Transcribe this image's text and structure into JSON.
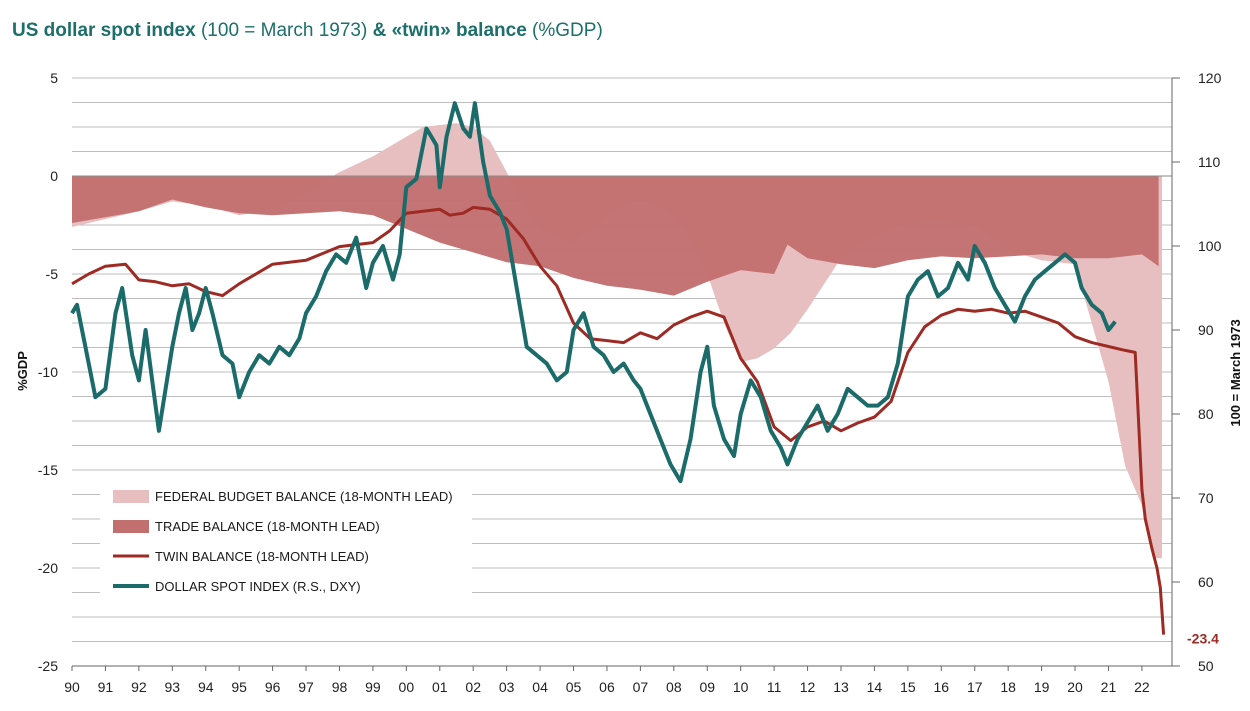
{
  "title": {
    "part1": "US dollar spot index",
    "part2": " (100 = March 1973) ",
    "part3": "& «twin» balance",
    "part4": " (%GDP)"
  },
  "colors": {
    "budget": "#e8bfc0",
    "trade": "#c26f70",
    "twin": "#9e2a24",
    "dollar": "#1a6b69",
    "grid": "#bdbdbd",
    "title": "#1d6f6b"
  },
  "chart_data": {
    "type": "area",
    "title": "US dollar spot index (100 = March 1973) & «twin» balance (%GDP)",
    "ylabel_left": "%GDP",
    "ylabel_right": "100 = March 1973",
    "ylim_left": [
      -25,
      5
    ],
    "ylim_right": [
      50,
      120
    ],
    "xlim": [
      1990,
      2022.9
    ],
    "left_ticks": [
      5,
      0,
      -5,
      -10,
      -15,
      -20,
      -25
    ],
    "right_ticks": [
      120,
      110,
      100,
      90,
      80,
      70,
      60,
      50
    ],
    "x_tick_values": [
      1990,
      1991,
      1992,
      1993,
      1994,
      1995,
      1996,
      1997,
      1998,
      1999,
      2000,
      2001,
      2002,
      2003,
      2004,
      2005,
      2006,
      2007,
      2008,
      2009,
      2010,
      2011,
      2012,
      2013,
      2014,
      2015,
      2016,
      2017,
      2018,
      2019,
      2020,
      2021,
      2022
    ],
    "x_tick_labels": [
      "90",
      "91",
      "92",
      "93",
      "94",
      "95",
      "96",
      "97",
      "98",
      "99",
      "00",
      "01",
      "02",
      "03",
      "04",
      "05",
      "06",
      "07",
      "08",
      "09",
      "10",
      "11",
      "12",
      "13",
      "14",
      "15",
      "16",
      "17",
      "18",
      "19",
      "20",
      "21",
      "22"
    ],
    "legend": [
      {
        "key": "budget",
        "label": "FEDERAL BUDGET BALANCE (18-MONTH LEAD)",
        "style": "box"
      },
      {
        "key": "trade",
        "label": "TRADE BALANCE (18-MONTH LEAD)",
        "style": "box"
      },
      {
        "key": "twin",
        "label": "TWIN BALANCE (18-MONTH LEAD)",
        "style": "line"
      },
      {
        "key": "dollar",
        "label": "DOLLAR SPOT INDEX (R.S., DXY)",
        "style": "line"
      }
    ],
    "annotation": {
      "x": 2022.6,
      "y": -23.4,
      "label": "-23.4"
    },
    "series": [
      {
        "name": "FEDERAL BUDGET BALANCE (18-MONTH LEAD)",
        "key": "budget",
        "axis": "left",
        "x": [
          1990,
          1991,
          1992,
          1993,
          1994,
          1995,
          1996,
          1997,
          1998,
          1999,
          2000,
          2000.5,
          2001,
          2001.5,
          2002,
          2002.5,
          2003,
          2003.5,
          2004,
          2005,
          2006,
          2007,
          2008,
          2008.5,
          2009,
          2009.5,
          2010,
          2010.5,
          2011,
          2011.5,
          2012,
          2013,
          2014,
          2015,
          2016,
          2017,
          2018,
          2019,
          2020,
          2021,
          2021.5,
          2022,
          2022.2,
          2022.4,
          2022.6
        ],
        "y": [
          -2.6,
          -2.2,
          -1.8,
          -1.3,
          -1.5,
          -2.0,
          -1.7,
          -0.8,
          0.2,
          1.0,
          2.0,
          2.5,
          2.6,
          2.7,
          2.5,
          1.8,
          0.2,
          -1.5,
          -2.7,
          -3.4,
          -2.0,
          -1.1,
          -2.0,
          -3.2,
          -5.0,
          -7.5,
          -9.5,
          -9.3,
          -8.8,
          -8.0,
          -6.8,
          -4.2,
          -3.0,
          -2.4,
          -2.3,
          -2.5,
          -3.8,
          -4.3,
          -4.5,
          -10.5,
          -14.8,
          -16.8,
          -18.5,
          -19.5,
          -19.5
        ]
      },
      {
        "name": "TRADE BALANCE (18-MONTH LEAD)",
        "key": "trade",
        "axis": "left",
        "x": [
          1990,
          1991,
          1992,
          1993,
          1994,
          1995,
          1996,
          1997,
          1998,
          1999,
          2000,
          2001,
          2002,
          2003,
          2004,
          2005,
          2006,
          2007,
          2008,
          2009,
          2010,
          2011,
          2011.4,
          2012,
          2013,
          2014,
          2015,
          2016,
          2017,
          2018,
          2019,
          2020,
          2021,
          2022,
          2022.5
        ],
        "y": [
          -2.4,
          -2.1,
          -1.8,
          -1.2,
          -1.6,
          -1.9,
          -2.0,
          -1.9,
          -1.8,
          -2.0,
          -2.7,
          -3.4,
          -3.9,
          -4.4,
          -4.6,
          -5.2,
          -5.6,
          -5.8,
          -6.1,
          -5.4,
          -4.8,
          -5.0,
          -3.5,
          -4.2,
          -4.5,
          -4.7,
          -4.3,
          -4.1,
          -4.2,
          -4.1,
          -4.0,
          -4.2,
          -4.2,
          -4.0,
          -4.6
        ]
      },
      {
        "name": "TWIN BALANCE (18-MONTH LEAD)",
        "key": "twin",
        "axis": "left",
        "x": [
          1990,
          1990.5,
          1991,
          1991.6,
          1992,
          1992.5,
          1993,
          1993.5,
          1994,
          1994.5,
          1995,
          1996,
          1997,
          1998,
          1998.5,
          1999,
          1999.5,
          2000,
          2000.5,
          2001,
          2001.3,
          2001.7,
          2002,
          2002.5,
          2003,
          2003.5,
          2004,
          2004.5,
          2005,
          2005.5,
          2006,
          2006.5,
          2007,
          2007.5,
          2008,
          2008.5,
          2009,
          2009.5,
          2010,
          2010.5,
          2011,
          2011.5,
          2012,
          2012.5,
          2013,
          2013.5,
          2014,
          2014.5,
          2015,
          2015.5,
          2016,
          2016.5,
          2017,
          2017.5,
          2018,
          2018.5,
          2019,
          2019.5,
          2020,
          2020.5,
          2021,
          2021.5,
          2021.8,
          2022,
          2022.1,
          2022.3,
          2022.45,
          2022.55,
          2022.65
        ],
        "y": [
          -5.5,
          -5.0,
          -4.6,
          -4.5,
          -5.3,
          -5.4,
          -5.6,
          -5.5,
          -5.9,
          -6.1,
          -5.5,
          -4.5,
          -4.3,
          -3.6,
          -3.5,
          -3.4,
          -2.8,
          -1.9,
          -1.8,
          -1.7,
          -2.0,
          -1.9,
          -1.6,
          -1.7,
          -2.2,
          -3.2,
          -4.6,
          -5.6,
          -7.5,
          -8.3,
          -8.4,
          -8.5,
          -8.0,
          -8.3,
          -7.6,
          -7.2,
          -6.9,
          -7.2,
          -9.3,
          -10.5,
          -12.8,
          -13.5,
          -12.8,
          -12.5,
          -13.0,
          -12.6,
          -12.3,
          -11.5,
          -9.0,
          -7.7,
          -7.1,
          -6.8,
          -6.9,
          -6.8,
          -7.0,
          -6.9,
          -7.2,
          -7.5,
          -8.2,
          -8.5,
          -8.7,
          -8.9,
          -9.0,
          -16.0,
          -17.5,
          -19.0,
          -20.0,
          -21.0,
          -23.4
        ]
      },
      {
        "name": "DOLLAR SPOT INDEX (R.S., DXY)",
        "key": "dollar",
        "axis": "right",
        "x": [
          1990,
          1990.15,
          1990.4,
          1990.7,
          1991,
          1991.3,
          1991.5,
          1991.8,
          1992,
          1992.2,
          1992.4,
          1992.6,
          1992.8,
          1993,
          1993.2,
          1993.4,
          1993.6,
          1993.8,
          1994,
          1994.2,
          1994.5,
          1994.8,
          1995,
          1995.3,
          1995.6,
          1995.9,
          1996.2,
          1996.5,
          1996.8,
          1997,
          1997.3,
          1997.6,
          1997.9,
          1998.2,
          1998.5,
          1998.8,
          1999,
          1999.3,
          1999.6,
          1999.8,
          2000,
          2000.3,
          2000.6,
          2000.9,
          2001,
          2001.2,
          2001.45,
          2001.7,
          2001.9,
          2002.05,
          2002.3,
          2002.5,
          2002.8,
          2003,
          2003.3,
          2003.6,
          2003.9,
          2004.2,
          2004.5,
          2004.8,
          2005,
          2005.3,
          2005.6,
          2005.9,
          2006.2,
          2006.5,
          2006.8,
          2007,
          2007.3,
          2007.6,
          2007.9,
          2008.2,
          2008.5,
          2008.8,
          2009,
          2009.2,
          2009.5,
          2009.8,
          2010,
          2010.3,
          2010.6,
          2010.9,
          2011.2,
          2011.4,
          2011.7,
          2012,
          2012.3,
          2012.6,
          2012.9,
          2013.2,
          2013.5,
          2013.8,
          2014.1,
          2014.4,
          2014.7,
          2015,
          2015.3,
          2015.6,
          2015.9,
          2016.2,
          2016.5,
          2016.8,
          2017,
          2017.3,
          2017.6,
          2017.9,
          2018.2,
          2018.5,
          2018.8,
          2019.1,
          2019.4,
          2019.7,
          2020,
          2020.2,
          2020.5,
          2020.8,
          2021,
          2021.2
        ],
        "y": [
          92,
          93,
          88,
          82,
          83,
          92,
          95,
          87,
          84,
          90,
          84,
          78,
          83,
          88,
          92,
          95,
          90,
          92,
          95,
          92,
          87,
          86,
          82,
          85,
          87,
          86,
          88,
          87,
          89,
          92,
          94,
          97,
          99,
          98,
          101,
          95,
          98,
          100,
          96,
          99,
          107,
          108,
          114,
          112,
          107,
          113,
          117,
          114,
          113,
          117,
          110,
          106,
          104,
          102,
          95,
          88,
          87,
          86,
          84,
          85,
          90,
          92,
          88,
          87,
          85,
          86,
          84,
          83,
          80,
          77,
          74,
          72,
          77,
          85,
          88,
          81,
          77,
          75,
          80,
          84,
          82,
          78,
          76,
          74,
          77,
          79,
          81,
          78,
          80,
          83,
          82,
          81,
          81,
          82,
          86,
          94,
          96,
          97,
          94,
          95,
          98,
          96,
          100,
          98,
          95,
          93,
          91,
          94,
          96,
          97,
          98,
          99,
          98,
          95,
          93,
          92,
          90,
          91
        ]
      }
    ]
  }
}
